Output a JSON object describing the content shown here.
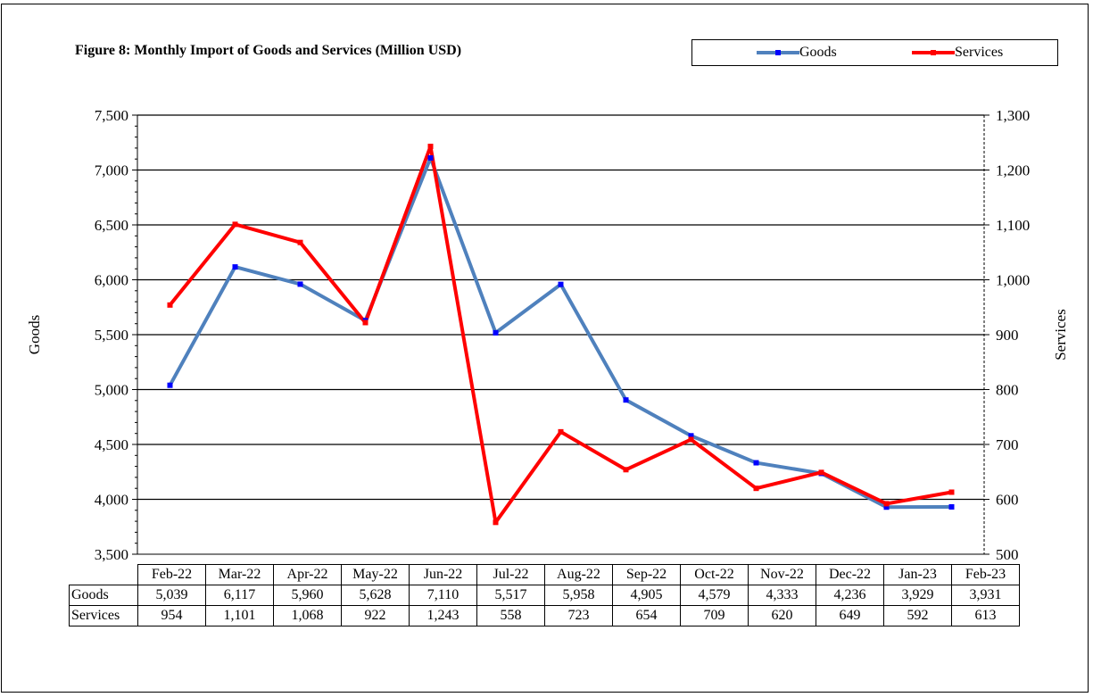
{
  "chart_data": {
    "type": "line",
    "title": "Figure 8: Monthly Import of Goods and Services (Million USD)",
    "categories": [
      "Feb-22",
      "Mar-22",
      "Apr-22",
      "May-22",
      "Jun-22",
      "Jul-22",
      "Aug-22",
      "Sep-22",
      "Oct-22",
      "Nov-22",
      "Dec-22",
      "Jan-23",
      "Feb-23"
    ],
    "series": [
      {
        "name": "Goods",
        "axis": "left",
        "color": "#4f81bd",
        "marker_color": "#0000ff",
        "values": [
          5039,
          6117,
          5960,
          5628,
          7110,
          5517,
          5958,
          4905,
          4579,
          4333,
          4236,
          3929,
          3931
        ]
      },
      {
        "name": "Services",
        "axis": "right",
        "color": "#ff0000",
        "marker_color": "#ff0000",
        "values": [
          954,
          1101,
          1068,
          922,
          1243,
          558,
          723,
          654,
          709,
          620,
          649,
          592,
          613
        ]
      }
    ],
    "ylabel": "Goods",
    "y2label": "Services",
    "ylim": [
      3500,
      7500
    ],
    "y2lim": [
      500,
      1300
    ],
    "yticks": [
      3500,
      4000,
      4500,
      5000,
      5500,
      6000,
      6500,
      7000,
      7500
    ],
    "yticklabels": [
      "3,500",
      "4,000",
      "4,500",
      "5,000",
      "5,500",
      "6,000",
      "6,500",
      "7,000",
      "7,500"
    ],
    "y2ticks": [
      500,
      600,
      700,
      800,
      900,
      1000,
      1100,
      1200,
      1300
    ],
    "y2ticklabels": [
      "500",
      "600",
      "700",
      "800",
      "900",
      "1,000",
      "1,100",
      "1,200",
      "1,300"
    ],
    "grid": true,
    "legend": "top-right",
    "table": {
      "rows": [
        {
          "label": "Goods",
          "cells": [
            "5,039",
            "6,117",
            "5,960",
            "5,628",
            "7,110",
            "5,517",
            "5,958",
            "4,905",
            "4,579",
            "4,333",
            "4,236",
            "3,929",
            "3,931"
          ]
        },
        {
          "label": "Services",
          "cells": [
            "954",
            "1,101",
            "1,068",
            "922",
            "1,243",
            "558",
            "723",
            "654",
            "709",
            "620",
            "649",
            "592",
            "613"
          ]
        }
      ]
    }
  }
}
